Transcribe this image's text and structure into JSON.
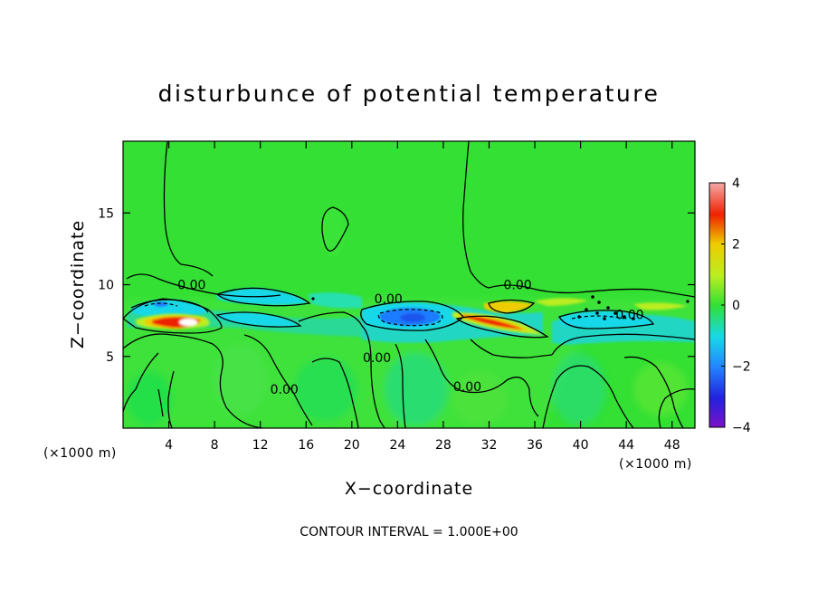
{
  "chart_data": {
    "type": "heatmap",
    "title": "disturbunce of potential temperature",
    "xlabel": "X−coordinate",
    "ylabel": "Z−coordinate",
    "x_unit_label": "(×1000 m)",
    "y_unit_label": "(×1000 m)",
    "xlim": [
      0,
      50
    ],
    "ylim": [
      0,
      20
    ],
    "x_ticks": [
      4,
      8,
      12,
      16,
      20,
      24,
      28,
      32,
      36,
      40,
      44,
      48
    ],
    "y_ticks": [
      5,
      10,
      15
    ],
    "colorbar": {
      "range": [
        -4,
        4
      ],
      "ticks": [
        4,
        2,
        0,
        -2,
        -4
      ],
      "colors": {
        "-4": "#7a12c8",
        "-3": "#2222dd",
        "-2": "#2288ff",
        "-1": "#18d8e8",
        "0": "#33e033",
        "1": "#bbee22",
        "2": "#eecc00",
        "3": "#ee2200",
        "4": "#f4a8a8"
      }
    },
    "background_value": 0,
    "contour_interval": 1.0,
    "contour_label": "0.00",
    "contour_labels": [
      {
        "x": 6,
        "z": 9.7,
        "text": "0.00"
      },
      {
        "x": 23.2,
        "z": 8.7,
        "text": "0.00"
      },
      {
        "x": 34.5,
        "z": 9.7,
        "text": "0.00"
      },
      {
        "x": 44.3,
        "z": 7.6,
        "text": "0.00"
      },
      {
        "x": 22.2,
        "z": 4.6,
        "text": "0.00"
      },
      {
        "x": 14.1,
        "z": 2.4,
        "text": "0.00"
      },
      {
        "x": 30.1,
        "z": 2.6,
        "text": "0.00"
      }
    ],
    "features": [
      {
        "type": "cold",
        "x": 25.5,
        "z": 7.6,
        "value": -2.5
      },
      {
        "type": "cold",
        "x": 4.3,
        "z": 8.7,
        "value": -1.5
      },
      {
        "type": "cold",
        "x": 13,
        "z": 9.2,
        "value": -1.2
      },
      {
        "type": "cold",
        "x": 41,
        "z": 7.8,
        "value": -1.2
      },
      {
        "type": "warm",
        "x": 5,
        "z": 7.6,
        "value": 3.5
      },
      {
        "type": "warm",
        "x": 31.7,
        "z": 7.4,
        "value": 3.0
      },
      {
        "type": "warm",
        "x": 33,
        "z": 8.5,
        "value": 1.5
      }
    ],
    "grid": false
  },
  "footer": {
    "contour_interval_text": "CONTOUR INTERVAL = 1.000E+00"
  }
}
